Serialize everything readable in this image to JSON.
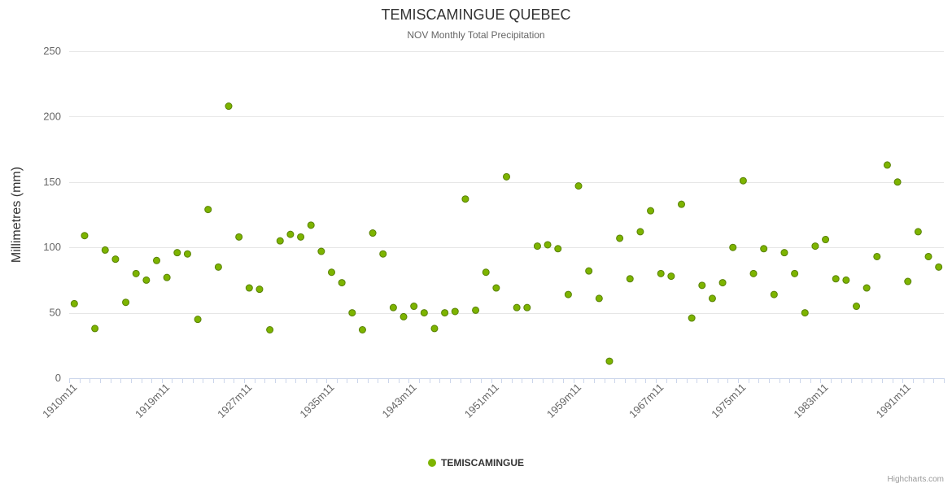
{
  "title": "TEMISCAMINGUE QUEBEC",
  "subtitle": "NOV Monthly Total Precipitation",
  "y_axis_title": "Millimetres (mm)",
  "legend": {
    "series_label": "TEMISCAMINGUE"
  },
  "credits_label": "Highcharts.com",
  "colors": {
    "point_fill": "#7db400",
    "point_stroke": "#578000",
    "grid_line": "#e6e6e6",
    "axis_line": "#ccd6eb",
    "label_text": "#666666",
    "title_text": "#333333"
  },
  "chart_data": {
    "type": "scatter",
    "title": "TEMISCAMINGUE QUEBEC",
    "subtitle": "NOV Monthly Total Precipitation",
    "series_name": "TEMISCAMINGUE",
    "xlabel": "",
    "ylabel": "Millimetres (mm)",
    "ylim": [
      0,
      250
    ],
    "y_ticks": [
      0,
      50,
      100,
      150,
      200,
      250
    ],
    "grid": true,
    "legend_position": "bottom",
    "x_tick_labels": [
      "1910m11",
      "1919m11",
      "1927m11",
      "1935m11",
      "1943m11",
      "1951m11",
      "1959m11",
      "1967m11",
      "1975m11",
      "1983m11",
      "1991m11"
    ],
    "x_tick_years": [
      1910,
      1919,
      1927,
      1935,
      1943,
      1951,
      1959,
      1967,
      1975,
      1983,
      1991
    ],
    "points": [
      [
        1910,
        57
      ],
      [
        1911,
        109
      ],
      [
        1912,
        38
      ],
      [
        1913,
        98
      ],
      [
        1914,
        91
      ],
      [
        1915,
        58
      ],
      [
        1916,
        80
      ],
      [
        1917,
        75
      ],
      [
        1918,
        90
      ],
      [
        1919,
        77
      ],
      [
        1920,
        96
      ],
      [
        1921,
        95
      ],
      [
        1922,
        45
      ],
      [
        1923,
        129
      ],
      [
        1924,
        85
      ],
      [
        1925,
        208
      ],
      [
        1926,
        108
      ],
      [
        1927,
        69
      ],
      [
        1928,
        68
      ],
      [
        1929,
        37
      ],
      [
        1930,
        105
      ],
      [
        1931,
        110
      ],
      [
        1932,
        108
      ],
      [
        1933,
        117
      ],
      [
        1934,
        97
      ],
      [
        1935,
        81
      ],
      [
        1936,
        73
      ],
      [
        1937,
        50
      ],
      [
        1938,
        37
      ],
      [
        1939,
        111
      ],
      [
        1940,
        95
      ],
      [
        1941,
        54
      ],
      [
        1942,
        47
      ],
      [
        1943,
        55
      ],
      [
        1944,
        50
      ],
      [
        1945,
        38
      ],
      [
        1946,
        50
      ],
      [
        1947,
        51
      ],
      [
        1948,
        137
      ],
      [
        1949,
        52
      ],
      [
        1950,
        81
      ],
      [
        1951,
        69
      ],
      [
        1952,
        154
      ],
      [
        1953,
        54
      ],
      [
        1954,
        54
      ],
      [
        1955,
        101
      ],
      [
        1956,
        102
      ],
      [
        1957,
        99
      ],
      [
        1958,
        64
      ],
      [
        1959,
        147
      ],
      [
        1960,
        82
      ],
      [
        1961,
        61
      ],
      [
        1962,
        13
      ],
      [
        1963,
        107
      ],
      [
        1964,
        76
      ],
      [
        1965,
        112
      ],
      [
        1966,
        128
      ],
      [
        1967,
        80
      ],
      [
        1968,
        78
      ],
      [
        1969,
        133
      ],
      [
        1970,
        46
      ],
      [
        1971,
        71
      ],
      [
        1972,
        61
      ],
      [
        1973,
        73
      ],
      [
        1974,
        100
      ],
      [
        1975,
        151
      ],
      [
        1976,
        80
      ],
      [
        1977,
        99
      ],
      [
        1978,
        64
      ],
      [
        1979,
        96
      ],
      [
        1980,
        80
      ],
      [
        1981,
        50
      ],
      [
        1982,
        101
      ],
      [
        1983,
        106
      ],
      [
        1984,
        76
      ],
      [
        1985,
        75
      ],
      [
        1986,
        55
      ],
      [
        1987,
        69
      ],
      [
        1988,
        93
      ],
      [
        1989,
        163
      ],
      [
        1990,
        150
      ],
      [
        1991,
        74
      ],
      [
        1992,
        112
      ],
      [
        1993,
        93
      ],
      [
        1994,
        85
      ]
    ]
  }
}
